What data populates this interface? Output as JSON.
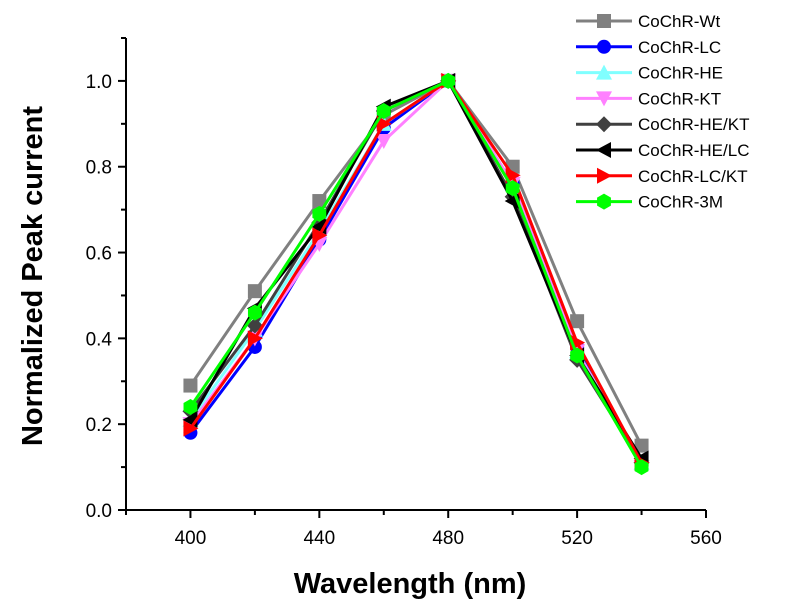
{
  "chart_data": {
    "type": "line",
    "title": "",
    "xlabel": "Wavelength (nm)",
    "ylabel": "Normalized Peak current",
    "xlim": [
      380,
      560
    ],
    "ylim": [
      0.0,
      1.1
    ],
    "xticks": [
      "400",
      "440",
      "480",
      "520",
      "560"
    ],
    "yticks": [
      "0.0",
      "0.2",
      "0.4",
      "0.6",
      "0.8",
      "1.0"
    ],
    "grid": false,
    "legend_position": "top-right",
    "x": [
      400,
      420,
      440,
      460,
      480,
      500,
      520,
      540
    ],
    "series": [
      {
        "name": "CoChR-Wt",
        "color": "#808080",
        "marker": "square",
        "values": [
          0.29,
          0.51,
          0.72,
          0.92,
          1.0,
          0.8,
          0.44,
          0.15
        ]
      },
      {
        "name": "CoChR-LC",
        "color": "#0000ff",
        "marker": "circle",
        "values": [
          0.18,
          0.38,
          0.63,
          0.89,
          1.0,
          0.76,
          0.38,
          0.11
        ]
      },
      {
        "name": "CoChR-HE",
        "color": "#80ffff",
        "marker": "triangle-up",
        "values": [
          0.21,
          0.42,
          0.65,
          0.9,
          1.0,
          0.76,
          0.37,
          0.11
        ]
      },
      {
        "name": "CoChR-KT",
        "color": "#ff80ff",
        "marker": "triangle-down",
        "values": [
          0.2,
          0.4,
          0.62,
          0.86,
          1.0,
          0.76,
          0.37,
          0.1
        ]
      },
      {
        "name": "CoChR-HE/KT",
        "color": "#404040",
        "marker": "diamond",
        "values": [
          0.23,
          0.43,
          0.67,
          0.93,
          1.0,
          0.73,
          0.35,
          0.11
        ]
      },
      {
        "name": "CoChR-HE/LC",
        "color": "#000000",
        "marker": "triangle-left",
        "values": [
          0.21,
          0.47,
          0.66,
          0.94,
          1.0,
          0.72,
          0.36,
          0.12
        ]
      },
      {
        "name": "CoChR-LC/KT",
        "color": "#ff0000",
        "marker": "triangle-right",
        "values": [
          0.19,
          0.4,
          0.64,
          0.9,
          1.0,
          0.78,
          0.39,
          0.11
        ]
      },
      {
        "name": "CoChR-3M",
        "color": "#00ff00",
        "marker": "hexagon",
        "values": [
          0.24,
          0.46,
          0.69,
          0.93,
          1.0,
          0.75,
          0.36,
          0.1
        ]
      }
    ]
  }
}
